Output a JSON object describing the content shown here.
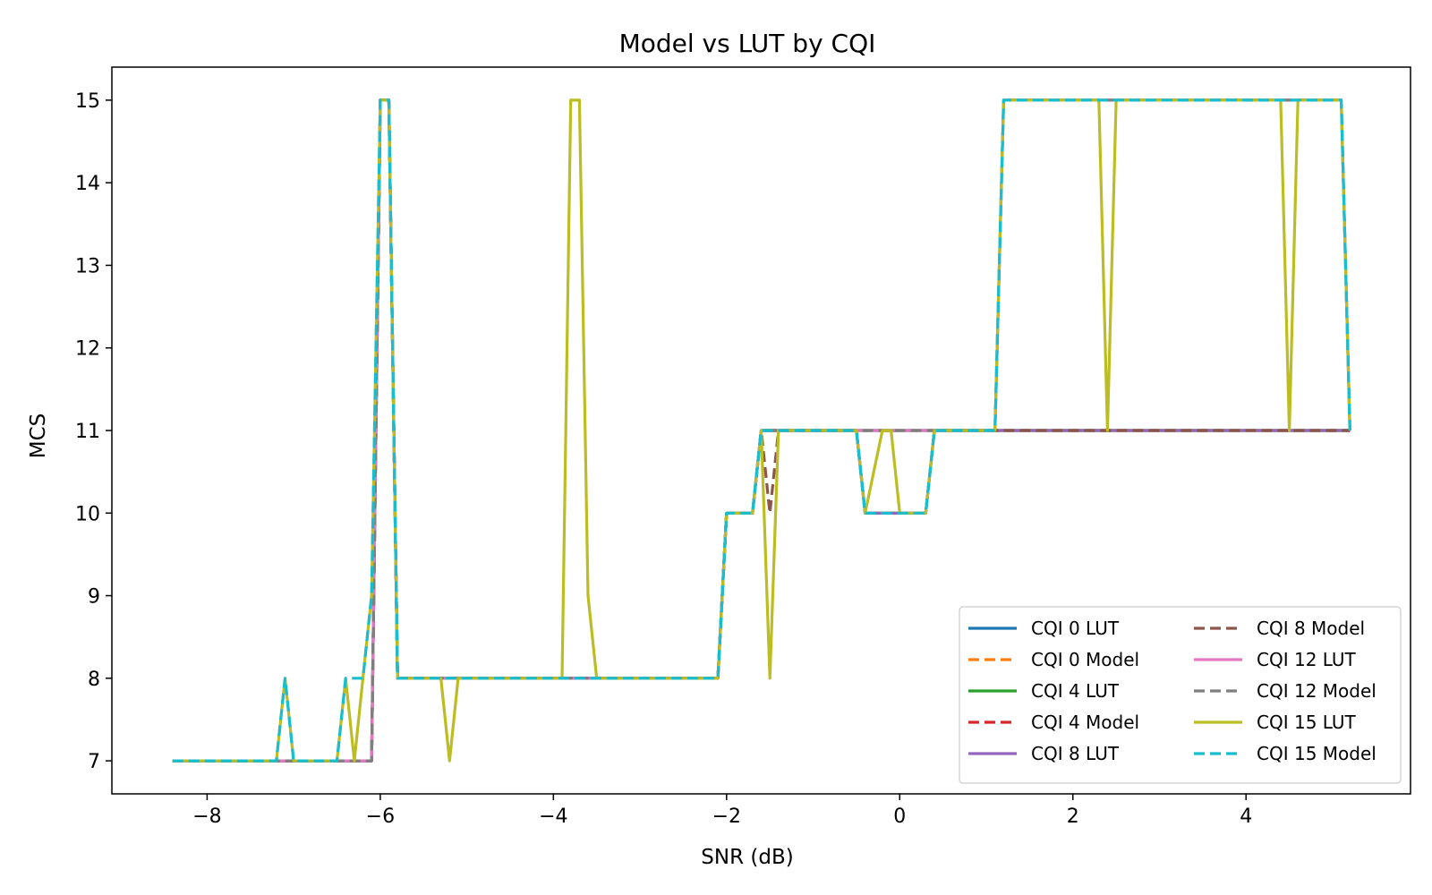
{
  "chart_data": {
    "type": "line",
    "title": "Model vs LUT by CQI",
    "xlabel": "SNR (dB)",
    "ylabel": "MCS",
    "xlim": [
      -9.1,
      5.9
    ],
    "ylim": [
      6.6,
      15.4
    ],
    "x_ticks": [
      -8,
      -6,
      -4,
      -2,
      0,
      2,
      4
    ],
    "x_tick_labels": [
      "−8",
      "−6",
      "−4",
      "−2",
      "0",
      "2",
      "4"
    ],
    "y_ticks": [
      7,
      8,
      9,
      10,
      11,
      12,
      13,
      14,
      15
    ],
    "y_tick_labels": [
      "7",
      "8",
      "9",
      "10",
      "11",
      "12",
      "13",
      "14",
      "15"
    ],
    "grid": false,
    "legend_placement": "lower-right",
    "legend_columns": 2,
    "series": [
      {
        "name": "CQI 0 LUT",
        "color": "#1f77b4",
        "style": "solid",
        "x": [
          -8.4,
          -7.2,
          -6.4,
          -6.1,
          -6.0,
          -5.9,
          -5.8,
          -2.1,
          -2.0,
          -1.7,
          -1.6,
          1.1,
          5.2
        ],
        "y": [
          7,
          7,
          7,
          7,
          15,
          15,
          8,
          8,
          10,
          10,
          11,
          11,
          11
        ]
      },
      {
        "name": "CQI 0 Model",
        "color": "#ff7f0e",
        "style": "dashed",
        "x": [
          -8.4,
          -7.2,
          -6.4,
          -6.1,
          -6.0,
          -5.9,
          -5.8,
          -2.1,
          -2.0,
          -1.7,
          -1.6,
          1.1,
          5.2
        ],
        "y": [
          7,
          7,
          7,
          7,
          15,
          15,
          8,
          8,
          10,
          10,
          11,
          11,
          11
        ]
      },
      {
        "name": "CQI 4 LUT",
        "color": "#2ca02c",
        "style": "solid",
        "x": [
          -8.4,
          -6.4,
          -6.1,
          -6.0,
          -5.9,
          -5.8,
          -2.1,
          -2.0,
          -1.7,
          -1.6,
          -0.5,
          -0.4,
          0.3,
          0.4,
          5.2
        ],
        "y": [
          7,
          7,
          7,
          15,
          15,
          8,
          8,
          10,
          10,
          11,
          11,
          10,
          10,
          11,
          11
        ]
      },
      {
        "name": "CQI 4 Model",
        "color": "#d62728",
        "style": "dashed",
        "x": [
          -8.4,
          -6.4,
          -6.1,
          -6.0,
          -5.9,
          -5.8,
          -2.1,
          -2.0,
          -1.7,
          -1.6,
          -0.5,
          -0.4,
          0.3,
          0.4,
          5.2
        ],
        "y": [
          7,
          7,
          7,
          15,
          15,
          8,
          8,
          10,
          10,
          11,
          11,
          10,
          10,
          11,
          11
        ]
      },
      {
        "name": "CQI 8 LUT",
        "color": "#9467bd",
        "style": "solid",
        "x": [
          -8.4,
          -6.4,
          -6.1,
          -6.0,
          -5.9,
          -5.8,
          -2.1,
          -2.0,
          -1.7,
          -1.6,
          -0.5,
          -0.4,
          0.3,
          0.4,
          5.2
        ],
        "y": [
          7,
          7,
          7,
          15,
          15,
          8,
          8,
          10,
          10,
          11,
          11,
          10,
          10,
          11,
          11
        ]
      },
      {
        "name": "CQI 8 Model",
        "color": "#8c564b",
        "style": "dashed",
        "x": [
          -8.4,
          -6.5,
          -6.1,
          -6.0,
          -5.9,
          -5.8,
          -2.1,
          -2.0,
          -1.7,
          -1.6,
          -1.5,
          -1.4,
          5.2
        ],
        "y": [
          7,
          7,
          7,
          15,
          15,
          8,
          8,
          10,
          10,
          11,
          10,
          11,
          11
        ]
      },
      {
        "name": "CQI 12 LUT",
        "color": "#e377c2",
        "style": "solid",
        "x": [
          -8.4,
          -6.4,
          -6.1,
          -6.0,
          -5.9,
          -5.8,
          -2.1,
          -2.0,
          -1.7,
          -1.6,
          1.1,
          1.2,
          5.1,
          5.2
        ],
        "y": [
          7,
          7,
          7,
          15,
          15,
          8,
          8,
          10,
          10,
          11,
          11,
          15,
          15,
          11
        ]
      },
      {
        "name": "CQI 12 Model",
        "color": "#7f7f7f",
        "style": "dashed",
        "x": [
          -8.4,
          -6.4,
          -6.1,
          -6.0,
          -5.9,
          -5.8,
          -2.1,
          -2.0,
          -1.7,
          -1.6,
          1.1,
          1.2,
          5.1,
          5.2
        ],
        "y": [
          7,
          7,
          7,
          15,
          15,
          8,
          8,
          10,
          10,
          11,
          11,
          15,
          15,
          11
        ]
      },
      {
        "name": "CQI 15 LUT",
        "color": "#bcbd22",
        "style": "solid",
        "x": [
          -8.4,
          -7.2,
          -7.1,
          -7.0,
          -6.5,
          -6.4,
          -6.3,
          -6.2,
          -6.1,
          -6.0,
          -5.9,
          -5.8,
          -5.3,
          -5.2,
          -5.1,
          -3.9,
          -3.8,
          -3.7,
          -3.6,
          -3.5,
          -2.1,
          -2.0,
          -1.7,
          -1.6,
          -1.5,
          -1.4,
          -0.5,
          -0.4,
          -0.2,
          -0.1,
          0.0,
          0.3,
          0.4,
          1.1,
          1.2,
          2.3,
          2.4,
          2.5,
          4.4,
          4.5,
          4.6,
          5.1,
          5.2
        ],
        "y": [
          7,
          7,
          8,
          7,
          7,
          8,
          7,
          8,
          9,
          15,
          15,
          8,
          8,
          7,
          8,
          8,
          15,
          15,
          9,
          8,
          8,
          10,
          10,
          11,
          8,
          11,
          11,
          10,
          11,
          11,
          10,
          10,
          11,
          11,
          15,
          15,
          11,
          15,
          15,
          11,
          15,
          15,
          11
        ]
      },
      {
        "name": "CQI 15 Model",
        "color": "#17becf",
        "style": "dashed",
        "x": [
          -8.4,
          -7.2,
          -7.1,
          -7.0,
          -6.5,
          -6.4,
          -6.3,
          -6.2,
          -6.1,
          -6.0,
          -5.9,
          -5.8,
          -2.1,
          -2.0,
          -1.7,
          -1.6,
          -0.5,
          -0.4,
          0.3,
          0.4,
          1.1,
          1.2,
          5.1,
          5.2
        ],
        "y": [
          7,
          7,
          8,
          7,
          7,
          8,
          8,
          8,
          9,
          15,
          15,
          8,
          8,
          10,
          10,
          11,
          11,
          10,
          10,
          11,
          11,
          15,
          15,
          11
        ]
      }
    ]
  }
}
